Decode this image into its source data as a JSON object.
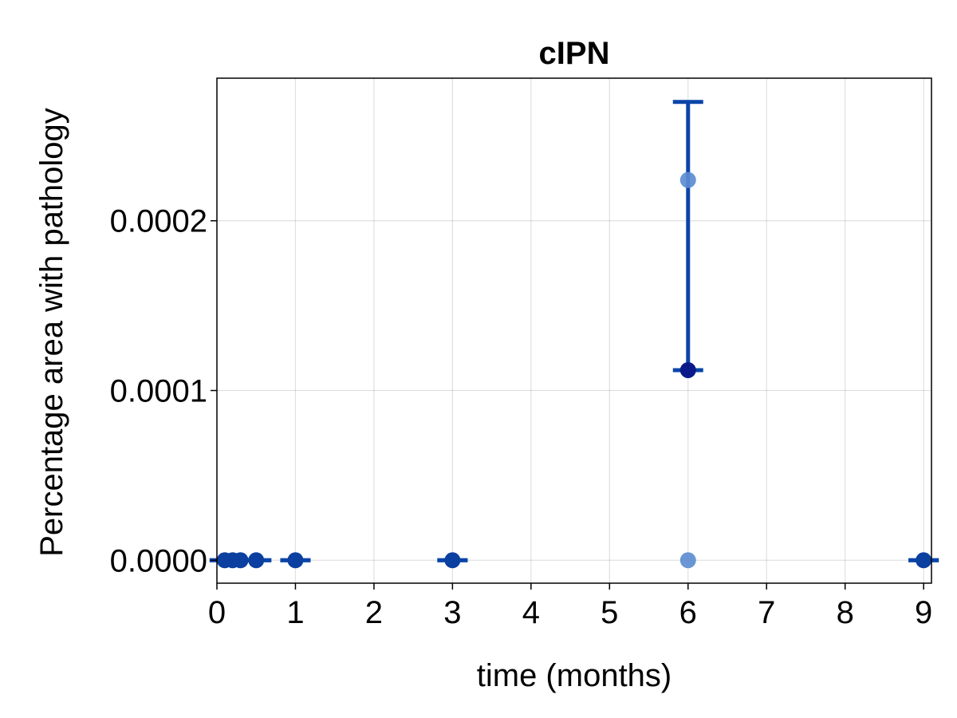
{
  "chart_data": {
    "type": "scatter",
    "title": "cIPN",
    "xlabel": "time (months)",
    "ylabel": "Percentage area with pathology",
    "xlim": [
      0,
      9.1
    ],
    "ylim": [
      -1.35e-05,
      0.000284
    ],
    "xticks": [
      0,
      1,
      2,
      3,
      4,
      5,
      6,
      7,
      8,
      9
    ],
    "xtick_labels": [
      "0",
      "1",
      "2",
      "3",
      "4",
      "5",
      "6",
      "7",
      "8",
      "9"
    ],
    "yticks": [
      0.0,
      0.0001,
      0.0002
    ],
    "ytick_labels": [
      "0.0000",
      "0.0001",
      "0.0002"
    ],
    "grid": true,
    "colors": {
      "raw_points": "#5b8bd0",
      "mean_points": "#0b3fa0",
      "error_bars": "#0a45a8",
      "highlight_mean": "#0a1a8a"
    },
    "raw_points": [
      {
        "x": 6,
        "y": 0.000224
      },
      {
        "x": 6,
        "y": 0.0
      }
    ],
    "means": [
      {
        "x": 0.1,
        "y": 0.0,
        "lower": 0.0,
        "upper": 0.0
      },
      {
        "x": 0.2,
        "y": 0.0,
        "lower": 0.0,
        "upper": 0.0
      },
      {
        "x": 0.3,
        "y": 0.0,
        "lower": 0.0,
        "upper": 0.0
      },
      {
        "x": 0.5,
        "y": 0.0,
        "lower": 0.0,
        "upper": 0.0
      },
      {
        "x": 1,
        "y": 0.0,
        "lower": 0.0,
        "upper": 0.0
      },
      {
        "x": 3,
        "y": 0.0,
        "lower": 0.0,
        "upper": 0.0
      },
      {
        "x": 6,
        "y": 0.000112,
        "lower": 0.000112,
        "upper": 0.00027
      },
      {
        "x": 9,
        "y": 0.0,
        "lower": 0.0,
        "upper": 0.0
      }
    ]
  }
}
